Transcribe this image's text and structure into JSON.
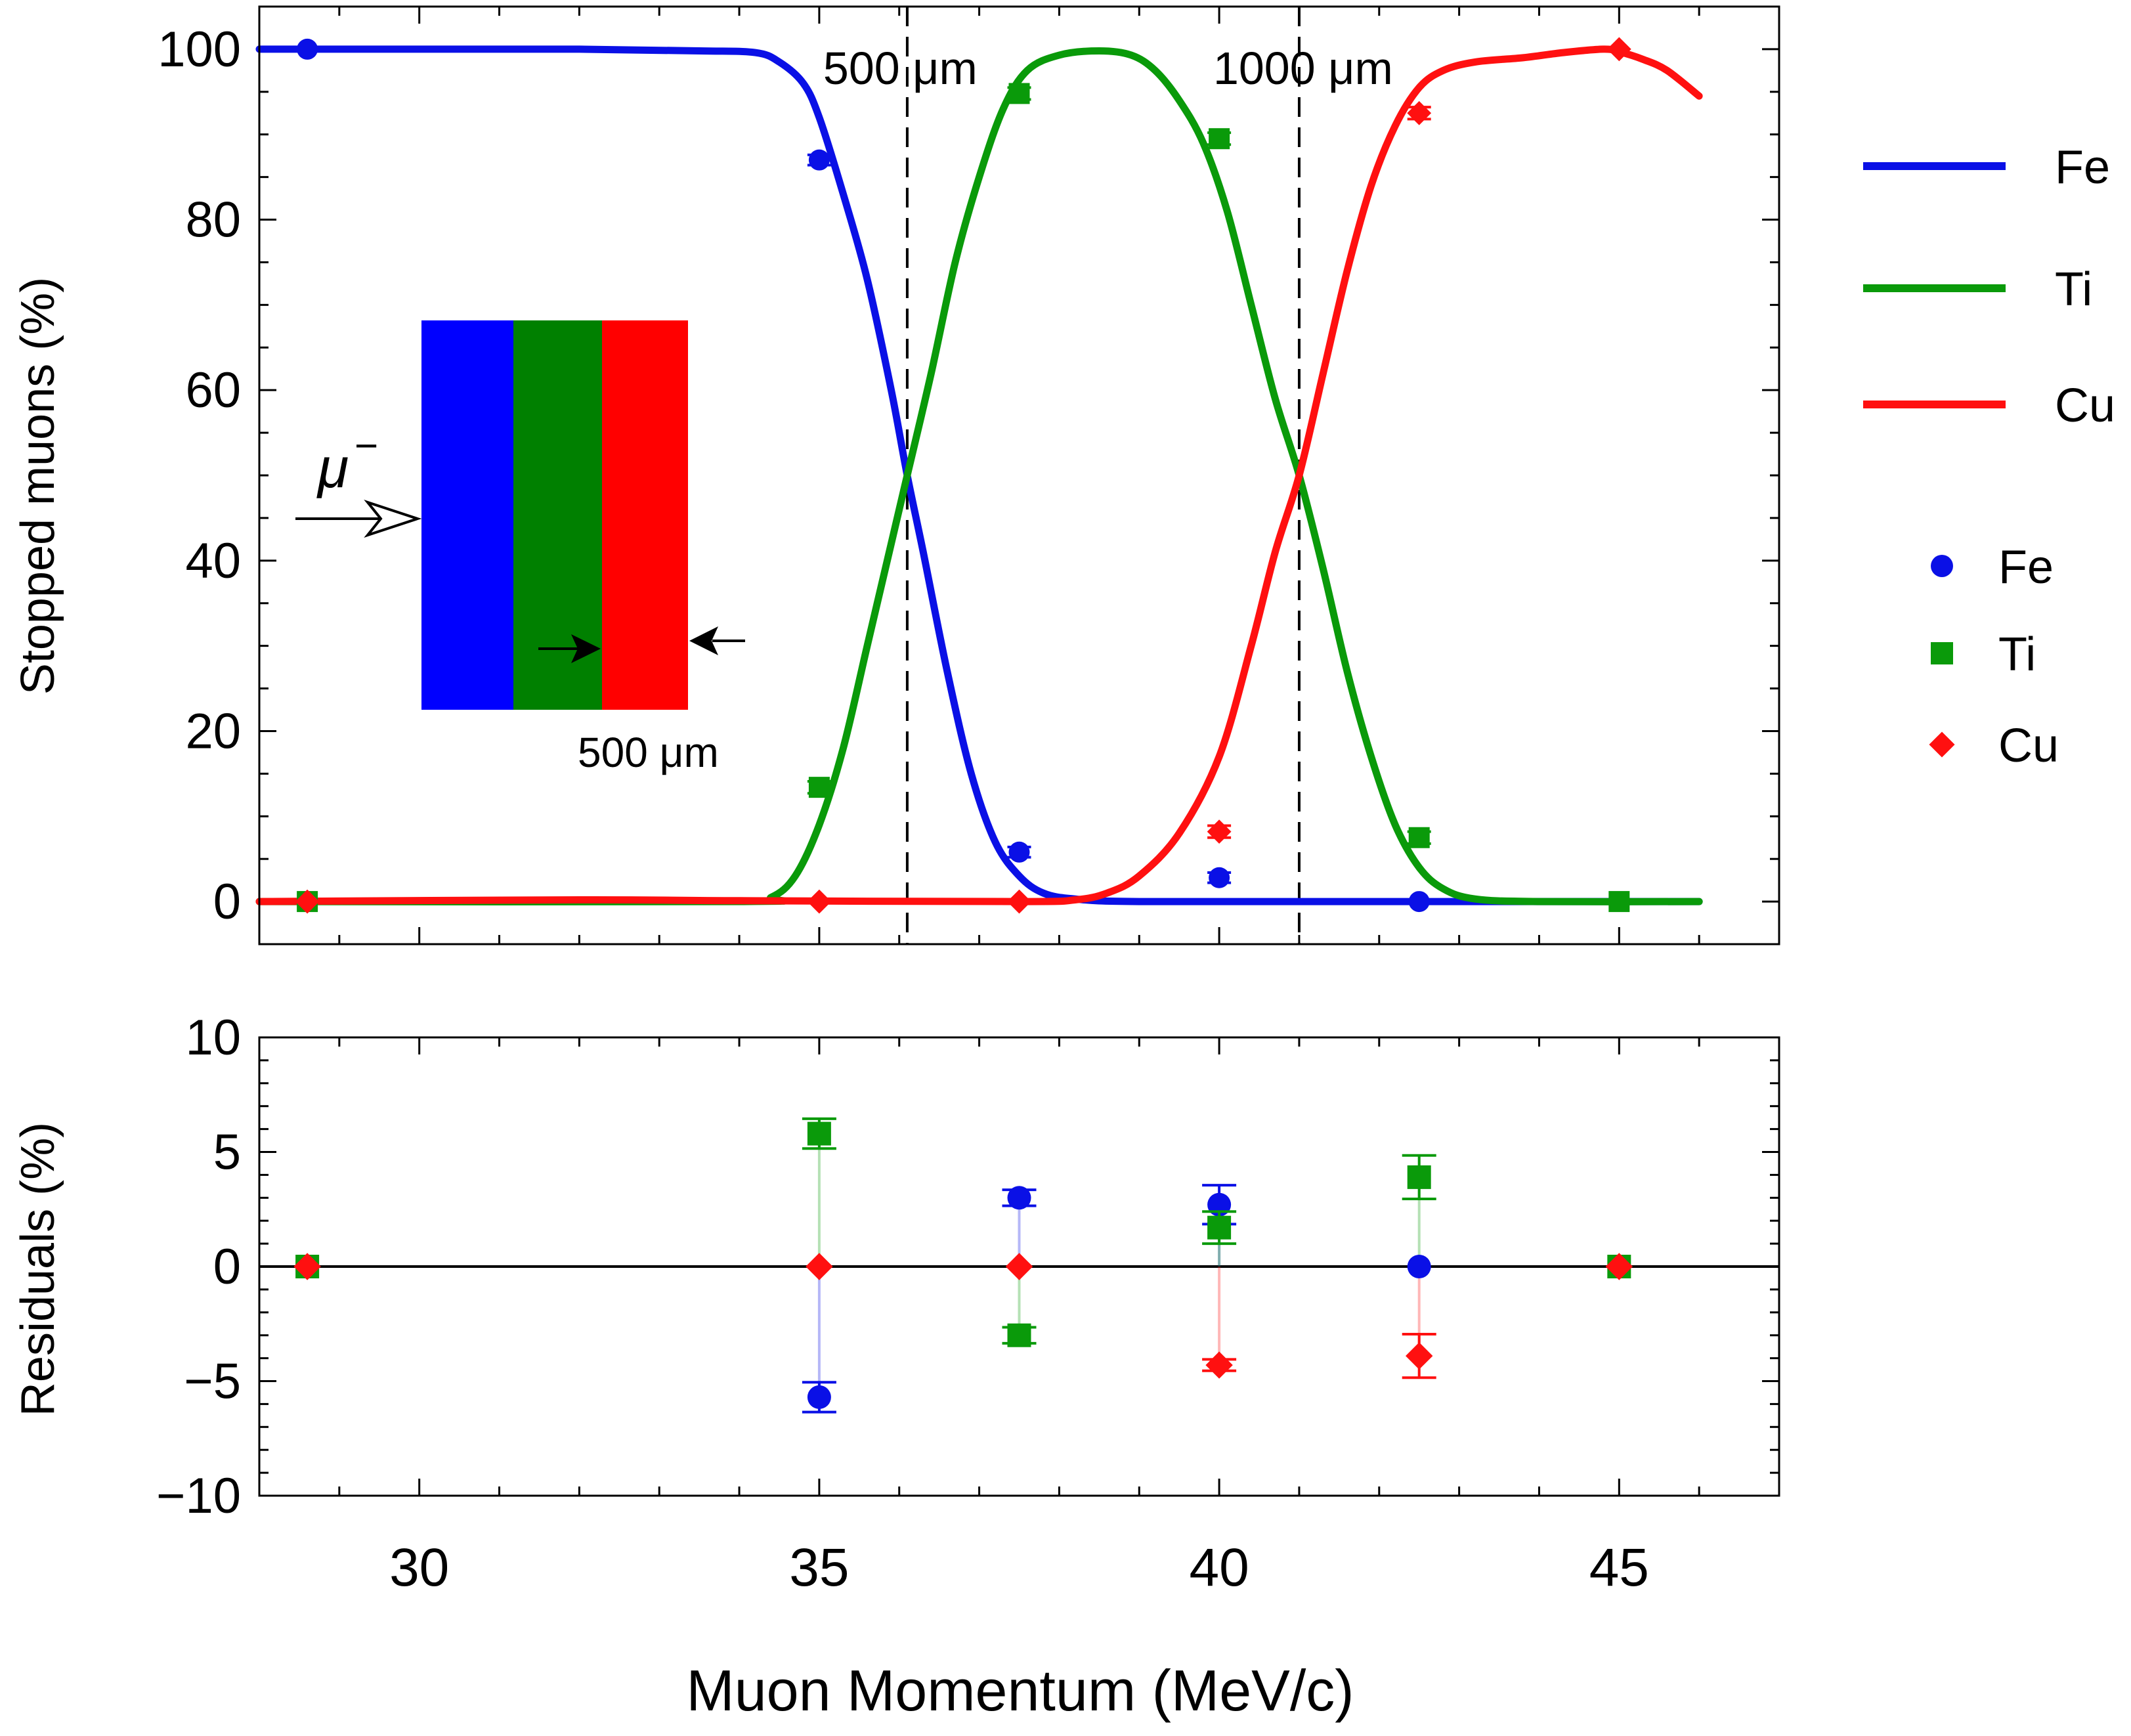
{
  "chart_data": [
    {
      "type": "line",
      "panel": "top",
      "ylabel": "Stopped muons (%)",
      "xlim": [
        28.0,
        47.0
      ],
      "ylim": [
        -5,
        105
      ],
      "xticks": [
        30,
        35,
        40,
        45
      ],
      "yticks": [
        0,
        20,
        40,
        60,
        80,
        100
      ],
      "xminor_step": 1,
      "yminor_step": 5,
      "vlines": [
        {
          "x": 36.1,
          "label": "500 μm"
        },
        {
          "x": 41.0,
          "label": "1000 μm"
        }
      ],
      "legend_lines": [
        {
          "name": "Fe",
          "color": "#0a10e6"
        },
        {
          "name": "Ti",
          "color": "#0a9a0a"
        },
        {
          "name": "Cu",
          "color": "#ff1010"
        }
      ],
      "legend_points": [
        {
          "name": "Fe",
          "color": "#0a10e6",
          "marker": "circle"
        },
        {
          "name": "Ti",
          "color": "#0a9a0a",
          "marker": "square"
        },
        {
          "name": "Cu",
          "color": "#ff1010",
          "marker": "diamond"
        }
      ],
      "curves": [
        {
          "name": "Fe",
          "color": "#0a10e6",
          "points": [
            [
              28.0,
              100
            ],
            [
              30,
              100
            ],
            [
              32,
              100
            ],
            [
              33.5,
              99.8
            ],
            [
              34.2,
              99.6
            ],
            [
              34.5,
              98.5
            ],
            [
              34.8,
              96
            ],
            [
              35.0,
              92
            ],
            [
              35.3,
              83
            ],
            [
              35.6,
              73
            ],
            [
              35.9,
              60
            ],
            [
              36.1,
              50
            ],
            [
              36.3,
              41
            ],
            [
              36.6,
              27
            ],
            [
              36.9,
              15
            ],
            [
              37.2,
              7
            ],
            [
              37.5,
              3
            ],
            [
              37.8,
              1
            ],
            [
              38.2,
              0.3
            ],
            [
              39,
              0
            ],
            [
              42,
              0
            ],
            [
              46,
              0
            ]
          ]
        },
        {
          "name": "Ti",
          "color": "#0a9a0a",
          "points": [
            [
              28.0,
              0
            ],
            [
              34.0,
              0
            ],
            [
              34.4,
              0.5
            ],
            [
              34.7,
              3
            ],
            [
              35.0,
              9
            ],
            [
              35.3,
              18
            ],
            [
              35.6,
              30
            ],
            [
              35.9,
              42
            ],
            [
              36.1,
              50
            ],
            [
              36.4,
              62
            ],
            [
              36.7,
              75
            ],
            [
              37.0,
              85
            ],
            [
              37.3,
              93
            ],
            [
              37.6,
              97.5
            ],
            [
              38.0,
              99.3
            ],
            [
              38.5,
              99.8
            ],
            [
              38.9,
              99.3
            ],
            [
              39.2,
              97.5
            ],
            [
              39.5,
              94
            ],
            [
              39.8,
              89
            ],
            [
              40.1,
              81
            ],
            [
              40.4,
              70
            ],
            [
              40.7,
              59
            ],
            [
              41.0,
              50
            ],
            [
              41.3,
              39
            ],
            [
              41.6,
              27
            ],
            [
              41.9,
              17
            ],
            [
              42.2,
              9
            ],
            [
              42.5,
              4
            ],
            [
              42.8,
              1.5
            ],
            [
              43.2,
              0.3
            ],
            [
              44,
              0
            ],
            [
              46,
              0
            ]
          ]
        },
        {
          "name": "Cu",
          "color": "#ff1010",
          "points": [
            [
              28.0,
              0
            ],
            [
              32,
              0.2
            ],
            [
              34,
              0.1
            ],
            [
              37.5,
              0
            ],
            [
              38.2,
              0.2
            ],
            [
              38.6,
              1
            ],
            [
              39.0,
              3
            ],
            [
              39.5,
              8
            ],
            [
              40.0,
              17
            ],
            [
              40.4,
              30
            ],
            [
              40.7,
              41
            ],
            [
              41.0,
              50
            ],
            [
              41.3,
              62
            ],
            [
              41.6,
              74
            ],
            [
              41.9,
              84
            ],
            [
              42.2,
              91
            ],
            [
              42.5,
              95.5
            ],
            [
              42.8,
              97.5
            ],
            [
              43.2,
              98.5
            ],
            [
              43.8,
              99
            ],
            [
              44.3,
              99.6
            ],
            [
              44.8,
              100
            ],
            [
              45.0,
              99.7
            ],
            [
              45.3,
              98.8
            ],
            [
              45.6,
              97.5
            ],
            [
              46.0,
              94.5
            ]
          ]
        }
      ],
      "points": [
        {
          "series": "Fe",
          "marker": "circle",
          "color": "#0a10e6",
          "data": [
            {
              "x": 28.6,
              "y": 100.0,
              "err": 0
            },
            {
              "x": 35.0,
              "y": 87.0,
              "err": 0.6
            },
            {
              "x": 37.5,
              "y": 5.8,
              "err": 0.6
            },
            {
              "x": 40.0,
              "y": 2.8,
              "err": 0.6
            },
            {
              "x": 42.5,
              "y": 0.0,
              "err": 0
            }
          ]
        },
        {
          "series": "Ti",
          "marker": "square",
          "color": "#0a9a0a",
          "data": [
            {
              "x": 28.6,
              "y": 0.0,
              "err": 0
            },
            {
              "x": 35.0,
              "y": 13.4,
              "err": 0.7
            },
            {
              "x": 37.5,
              "y": 94.8,
              "err": 0.7
            },
            {
              "x": 40.0,
              "y": 89.5,
              "err": 0.7
            },
            {
              "x": 42.5,
              "y": 7.5,
              "err": 0.7
            },
            {
              "x": 45.0,
              "y": 0.0,
              "err": 0
            }
          ]
        },
        {
          "series": "Cu",
          "marker": "diamond",
          "color": "#ff1010",
          "data": [
            {
              "x": 28.6,
              "y": 0.0,
              "err": 0
            },
            {
              "x": 35.0,
              "y": 0.0,
              "err": 0
            },
            {
              "x": 37.5,
              "y": 0.0,
              "err": 0
            },
            {
              "x": 40.0,
              "y": 8.2,
              "err": 0.7
            },
            {
              "x": 42.5,
              "y": 92.5,
              "err": 0.7
            },
            {
              "x": 45.0,
              "y": 100.0,
              "err": 0
            }
          ]
        }
      ],
      "inset": {
        "particle_label": "μ",
        "particle_charge": "−",
        "layers": [
          {
            "name": "Fe",
            "color": "#0000ff"
          },
          {
            "name": "Ti",
            "color": "#008000"
          },
          {
            "name": "Cu",
            "color": "#ff0000"
          }
        ],
        "thickness_label": "500 μm"
      }
    },
    {
      "type": "scatter",
      "panel": "bottom",
      "ylabel": "Residuals (%)",
      "xlabel": "Muon Momentum (MeV/c)",
      "xlim": [
        28.0,
        47.0
      ],
      "ylim": [
        -10,
        10
      ],
      "xticks": [
        30,
        35,
        40,
        45
      ],
      "yticks": [
        -10,
        -5,
        0,
        5,
        10
      ],
      "ytick_labels": [
        "−10",
        "−5",
        "0",
        "5",
        "10"
      ],
      "xminor_step": 1,
      "yminor_step": 1,
      "zero_line": true,
      "series": [
        {
          "name": "Fe",
          "marker": "circle",
          "color": "#0a10e6",
          "data": [
            {
              "x": 28.6,
              "y": 0.0,
              "err": 0
            },
            {
              "x": 35.0,
              "y": -5.7,
              "err": 0.65
            },
            {
              "x": 37.5,
              "y": 3.0,
              "err": 0.35
            },
            {
              "x": 40.0,
              "y": 2.7,
              "err": 0.85
            },
            {
              "x": 42.5,
              "y": 0.0,
              "err": 0
            }
          ]
        },
        {
          "name": "Ti",
          "marker": "square",
          "color": "#0a9a0a",
          "data": [
            {
              "x": 28.6,
              "y": 0.0,
              "err": 0
            },
            {
              "x": 35.0,
              "y": 5.8,
              "err": 0.65
            },
            {
              "x": 37.5,
              "y": -3.0,
              "err": 0.35
            },
            {
              "x": 40.0,
              "y": 1.7,
              "err": 0.7
            },
            {
              "x": 42.5,
              "y": 3.9,
              "err": 0.95
            },
            {
              "x": 45.0,
              "y": 0.0,
              "err": 0
            }
          ]
        },
        {
          "name": "Cu",
          "marker": "diamond",
          "color": "#ff1010",
          "data": [
            {
              "x": 28.6,
              "y": 0.0,
              "err": 0
            },
            {
              "x": 35.0,
              "y": 0.0,
              "err": 0
            },
            {
              "x": 37.5,
              "y": 0.0,
              "err": 0
            },
            {
              "x": 40.0,
              "y": -4.3,
              "err": 0.25
            },
            {
              "x": 42.5,
              "y": -3.9,
              "err": 0.95
            },
            {
              "x": 45.0,
              "y": 0.0,
              "err": 0
            }
          ]
        }
      ]
    }
  ]
}
